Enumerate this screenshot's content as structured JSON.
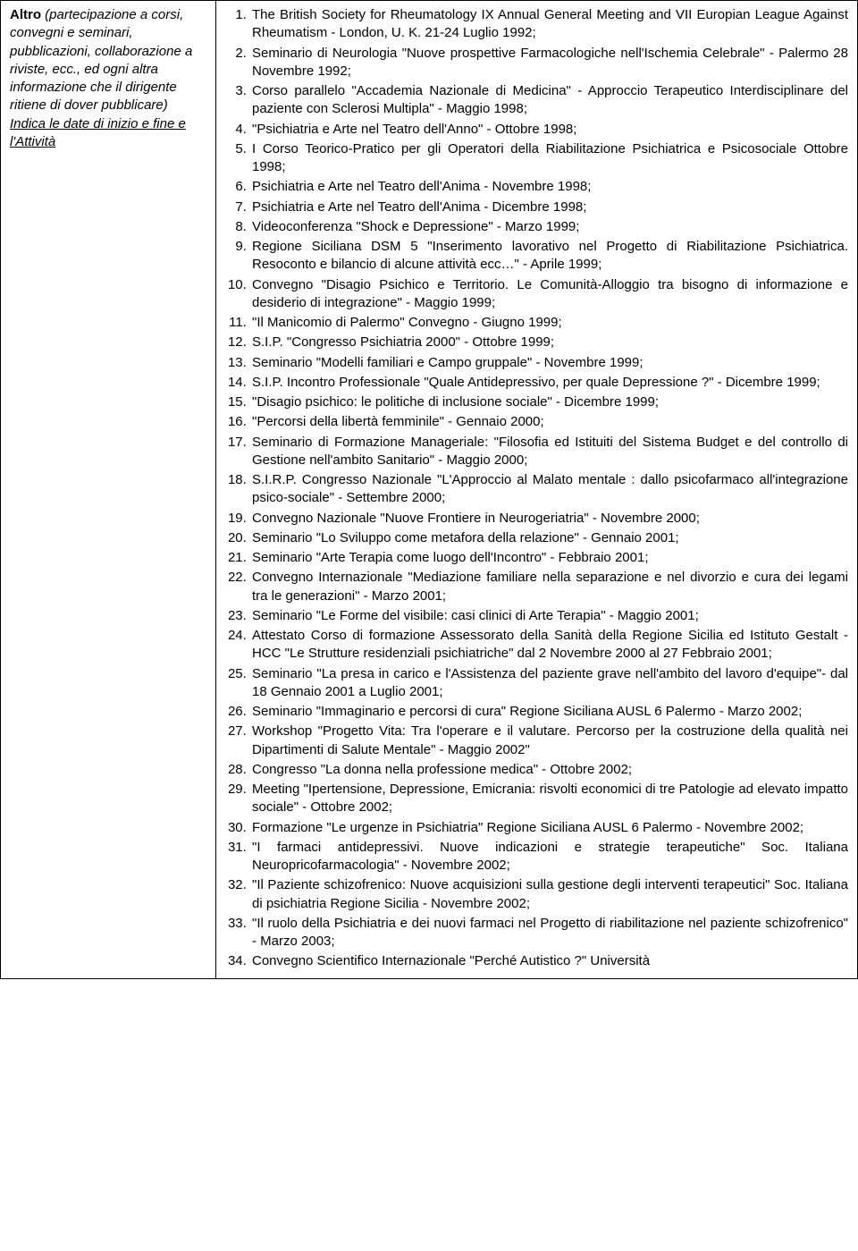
{
  "left": {
    "title": "Altro",
    "italic1": " (partecipazione a corsi, convegni e seminari, pubblicazioni, collaborazione a riviste, ecc., ed ogni altra informazione che il dirigente ritiene di dover pubblicare)",
    "underline": "Indica le date di inizio e fine e l'Attività"
  },
  "items": [
    "The British Society for Rheumatology IX Annual General Meeting and VII Europian League Against Rheumatism - London, U. K. 21-24 Luglio 1992;",
    "Seminario di Neurologia \"Nuove prospettive Farmacologiche nell'Ischemia Celebrale\" - Palermo 28 Novembre 1992;",
    "Corso parallelo \"Accademia Nazionale di Medicina\" - Approccio Terapeutico Interdisciplinare del paziente con Sclerosi Multipla\" - Maggio 1998;",
    "\"Psichiatria e Arte nel Teatro dell'Anno\" - Ottobre 1998;",
    "I Corso Teorico-Pratico per gli Operatori della Riabilitazione Psichiatrica e Psicosociale  Ottobre 1998;",
    "Psichiatria e Arte nel Teatro dell'Anima - Novembre 1998;",
    "Psichiatria e Arte nel Teatro dell'Anima - Dicembre 1998;",
    "Videoconferenza \"Shock e Depressione\" - Marzo 1999;",
    "Regione Siciliana   DSM 5 \"Inserimento lavorativo nel Progetto di Riabilitazione Psichiatrica. Resoconto e bilancio di alcune attività ecc…\" - Aprile 1999;",
    "Convegno \"Disagio Psichico e Territorio. Le Comunità-Alloggio tra bisogno di informazione e desiderio di integrazione\" - Maggio 1999;",
    "\"Il Manicomio di Palermo\"  Convegno - Giugno 1999;",
    "S.I.P. \"Congresso Psichiatria 2000\" - Ottobre 1999;",
    "Seminario \"Modelli familiari e Campo gruppale\" - Novembre 1999;",
    "S.I.P.  Incontro Professionale \"Quale Antidepressivo, per quale Depressione ?\" - Dicembre 1999;",
    "\"Disagio psichico: le politiche di inclusione sociale\"  - Dicembre 1999;",
    "\"Percorsi della libertà femminile\" - Gennaio 2000;",
    "Seminario di Formazione Manageriale: \"Filosofia ed Istituiti del Sistema Budget e del controllo di Gestione nell'ambito Sanitario\" - Maggio 2000;",
    "S.I.R.P.  Congresso Nazionale  \"L'Approccio al Malato mentale : dallo psicofarmaco all'integrazione psico-sociale\" - Settembre 2000;",
    "Convegno Nazionale \"Nuove Frontiere in Neurogeriatria\" - Novembre 2000;",
    "Seminario  \"Lo Sviluppo come metafora della relazione\" - Gennaio 2001;",
    "Seminario \"Arte Terapia come luogo dell'Incontro\" - Febbraio 2001;",
    "Convegno Internazionale \"Mediazione familiare nella separazione e nel divorzio e cura dei legami tra le generazioni\" - Marzo 2001;",
    "Seminario \"Le Forme del visibile: casi clinici di Arte Terapia\" - Maggio 2001;",
    "Attestato Corso di formazione Assessorato della Sanità della Regione Sicilia ed Istituto Gestalt - HCC \"Le Strutture residenziali psichiatriche\" dal 2 Novembre 2000 al 27 Febbraio 2001;",
    "Seminario \"La presa in carico e l'Assistenza del paziente grave nell'ambito del lavoro d'equipe\"- dal 18 Gennaio 2001 a Luglio 2001;",
    "Seminario \"Immaginario e percorsi di cura\" Regione Siciliana AUSL 6 Palermo - Marzo 2002;",
    "Workshop \"Progetto Vita: Tra l'operare e il valutare. Percorso per la costruzione della qualità  nei Dipartimenti di Salute Mentale\" - Maggio 2002\"",
    "Congresso \"La donna nella professione medica\" - Ottobre 2002;",
    "Meeting \"Ipertensione, Depressione, Emicrania: risvolti economici di tre Patologie ad elevato impatto sociale\" - Ottobre 2002;",
    "Formazione \"Le urgenze in Psichiatria\" Regione Siciliana AUSL 6 Palermo - Novembre 2002;",
    "\"I farmaci antidepressivi. Nuove indicazioni e strategie terapeutiche\" Soc. Italiana Neuropricofarmacologia\" - Novembre 2002;",
    "\"Il Paziente schizofrenico: Nuove acquisizioni sulla gestione degli interventi terapeutici\" Soc. Italiana di psichiatria Regione Sicilia - Novembre 2002;",
    "\"Il ruolo della Psichiatria e dei nuovi farmaci nel Progetto di riabilitazione nel paziente schizofrenico\" - Marzo 2003;",
    "Convegno Scientifico Internazionale \"Perché Autistico ?\" Università"
  ]
}
